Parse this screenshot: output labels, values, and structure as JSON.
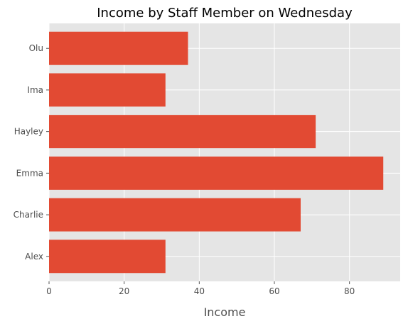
{
  "chart_data": {
    "type": "bar",
    "orientation": "horizontal",
    "title": "Income by Staff Member on Wednesday",
    "xlabel": "Income",
    "ylabel": "",
    "categories": [
      "Alex",
      "Charlie",
      "Emma",
      "Hayley",
      "Ima",
      "Olu"
    ],
    "values": [
      31,
      67,
      89,
      71,
      31,
      37
    ],
    "xlim": [
      0,
      93.5
    ],
    "xticks": [
      0,
      20,
      40,
      60,
      80
    ],
    "grid": true,
    "style": "ggplot",
    "colors": {
      "bar": "#E24A33",
      "panel": "#E5E5E5",
      "grid": "#FFFFFF",
      "text": "#4D4D4D"
    }
  }
}
